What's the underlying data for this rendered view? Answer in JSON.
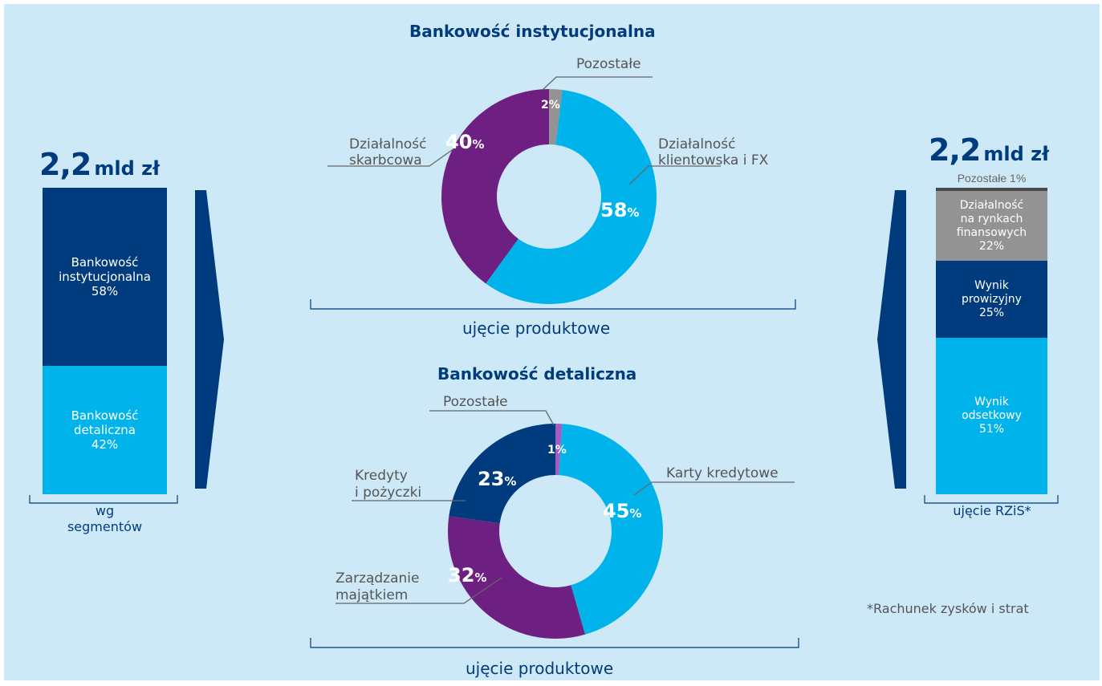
{
  "left_panel": {
    "total_number": "2,2",
    "total_unit": "mld zł",
    "segments": [
      {
        "lines": [
          "Bankowość",
          "instytucjonalna",
          "58%"
        ],
        "value": 58
      },
      {
        "lines": [
          "Bankowość",
          "detaliczna",
          "42%"
        ],
        "value": 42
      }
    ],
    "bracket_label": [
      "wg",
      "segmentów"
    ]
  },
  "right_panel": {
    "total_number": "2,2",
    "total_unit": "mld zł",
    "top_label": "Pozostałe 1%",
    "segments": [
      {
        "lines": [
          "Działalność",
          "na rynkach",
          "finansowych",
          "22%"
        ],
        "value": 22
      },
      {
        "lines": [
          "Wynik",
          "prowizyjny",
          "25%"
        ],
        "value": 25
      },
      {
        "lines": [
          "Wynik",
          "odsetkowy",
          "51%"
        ],
        "value": 51
      }
    ],
    "bracket_label": "ujęcie RZiS*",
    "footnote": "*Rachunek zysków i strat"
  },
  "colors": {
    "background": "#cde9f8",
    "dark_blue": "#003c7d",
    "light_blue": "#00b4eb",
    "purple": "#6e1f82",
    "gray": "#939393",
    "label_gray": "#555555",
    "leader_gray": "#666666"
  },
  "chart_data": [
    {
      "type": "pie",
      "title": "Bankowość instytucjonalna",
      "subtitle": "ujęcie produktowe",
      "slices": [
        {
          "label": "Pozostałe",
          "value": 2,
          "pct_text": "2%",
          "color": "#939393"
        },
        {
          "label": "Działalność klientowska i FX",
          "value": 58,
          "pct_text": "58",
          "color": "#00b4eb"
        },
        {
          "label": "Działalność skarbcowa",
          "value": 40,
          "pct_text": "40",
          "color": "#6e1f82"
        }
      ]
    },
    {
      "type": "pie",
      "title": "Bankowość detaliczna",
      "subtitle": "ujęcie produktowe",
      "slices": [
        {
          "label": "Pozostałe",
          "value": 1,
          "pct_text": "1%",
          "color": "#a05fc0"
        },
        {
          "label": "Karty kredytowe",
          "value": 45,
          "pct_text": "45",
          "color": "#00b4eb"
        },
        {
          "label": "Zarządzanie majątkiem",
          "value": 32,
          "pct_text": "32",
          "color": "#6e1f82"
        },
        {
          "label": "Kredyty i pożyczki",
          "value": 23,
          "pct_text": "23",
          "color": "#003c7d"
        }
      ]
    }
  ]
}
